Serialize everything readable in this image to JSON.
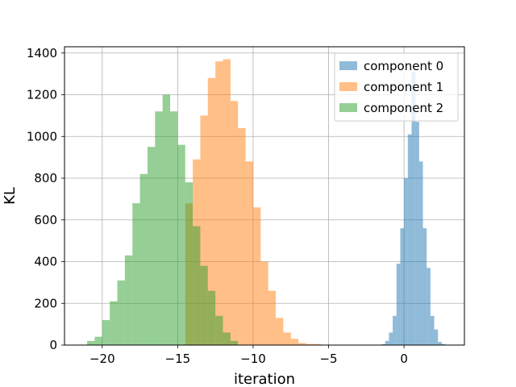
{
  "chart_data": {
    "type": "bar",
    "title": "",
    "xlabel": "iteration",
    "ylabel": "KL",
    "xlim": [
      -22.5,
      4
    ],
    "ylim": [
      0,
      1430
    ],
    "grid": true,
    "legend_position": "top-right",
    "x_ticks": [
      -20,
      -15,
      -10,
      -5,
      0
    ],
    "x_tick_labels": [
      "−20",
      "−15",
      "−10",
      "−5",
      "0"
    ],
    "y_ticks": [
      0,
      200,
      400,
      600,
      800,
      1000,
      1200,
      1400
    ],
    "y_tick_labels": [
      "0",
      "200",
      "400",
      "600",
      "800",
      "1000",
      "1200",
      "1400"
    ],
    "series": [
      {
        "name": "component 0",
        "color": "#1f77b4",
        "bin_edges": [
          -1.5,
          -1.25,
          -1.0,
          -0.75,
          -0.5,
          -0.25,
          0.0,
          0.25,
          0.5,
          0.75,
          1.0,
          1.25,
          1.5,
          1.75,
          2.0,
          2.25,
          2.5,
          2.75
        ],
        "counts": [
          5,
          20,
          60,
          140,
          390,
          560,
          800,
          1010,
          1310,
          1070,
          880,
          560,
          370,
          140,
          75,
          15,
          5
        ]
      },
      {
        "name": "component 1",
        "color": "#ff7f0e",
        "bin_edges": [
          -14.5,
          -14.0,
          -13.5,
          -13.0,
          -12.5,
          -12.0,
          -11.5,
          -11.0,
          -10.5,
          -10.0,
          -9.5,
          -9.0,
          -8.5,
          -8.0,
          -7.5,
          -7.0,
          -6.5,
          -6.0,
          -5.5
        ],
        "counts": [
          680,
          890,
          1100,
          1280,
          1360,
          1370,
          1170,
          1040,
          880,
          660,
          400,
          260,
          130,
          60,
          30,
          10,
          5,
          5
        ]
      },
      {
        "name": "component 2",
        "color": "#2ca02c",
        "bin_edges": [
          -21.0,
          -20.5,
          -20.0,
          -19.5,
          -19.0,
          -18.5,
          -18.0,
          -17.5,
          -17.0,
          -16.5,
          -16.0,
          -15.5,
          -15.0,
          -14.5,
          -14.0,
          -13.5,
          -13.0,
          -12.5,
          -12.0,
          -11.5,
          -11.0
        ],
        "counts": [
          20,
          40,
          120,
          210,
          310,
          430,
          680,
          820,
          950,
          1120,
          1200,
          1120,
          960,
          780,
          570,
          380,
          260,
          140,
          60,
          20
        ]
      }
    ],
    "legend": [
      "component 0",
      "component 1",
      "component 2"
    ]
  }
}
